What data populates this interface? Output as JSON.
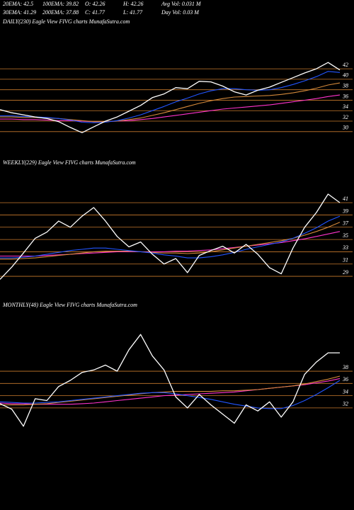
{
  "header": {
    "lines": [
      [
        "20EMA: 42.5",
        "100EMA: 39.82",
        "O: 42.26",
        "H: 42.26",
        "Avg Vol: 0.031 M"
      ],
      [
        "30EMA: 41.29",
        "200EMA: 37.88",
        "C: 41.77",
        "L: 41.77",
        "Day Vol: 0.03 M"
      ]
    ]
  },
  "chart_data": [
    {
      "type": "line",
      "title": "DAILY(230) Eagle  View  FIVG charts MunafaSutra.com",
      "ylim": [
        27.4,
        50
      ],
      "yticks": [
        30,
        32,
        34,
        36,
        38,
        40,
        42
      ],
      "level_color": "#c87a2c",
      "series": [
        {
          "color": "#ffffff",
          "values": [
            34.2,
            33.6,
            33.2,
            32.8,
            32.5,
            31.9,
            30.8,
            29.8,
            30.9,
            32.0,
            32.8,
            33.9,
            35.0,
            36.5,
            37.2,
            38.4,
            38.2,
            39.6,
            39.5,
            38.7,
            37.6,
            37.0,
            37.9,
            38.5,
            39.4,
            40.3,
            41.2,
            42.0,
            43.2,
            41.77
          ]
        },
        {
          "color": "#2255ff",
          "values": [
            33.0,
            33.0,
            32.9,
            32.8,
            32.7,
            32.5,
            32.2,
            31.8,
            31.7,
            31.8,
            32.1,
            32.6,
            33.2,
            34.0,
            34.8,
            35.7,
            36.4,
            37.2,
            37.8,
            38.2,
            38.2,
            38.0,
            37.9,
            38.0,
            38.4,
            39.0,
            39.7,
            40.5,
            41.5,
            41.3
          ]
        },
        {
          "color": "#d4893a",
          "values": [
            32.8,
            32.8,
            32.7,
            32.7,
            32.6,
            32.5,
            32.3,
            32.1,
            31.9,
            31.9,
            32.0,
            32.3,
            32.6,
            33.1,
            33.6,
            34.2,
            34.8,
            35.4,
            35.9,
            36.3,
            36.6,
            36.7,
            36.8,
            36.9,
            37.1,
            37.4,
            37.8,
            38.3,
            38.9,
            39.3
          ]
        },
        {
          "color": "#ff33cc",
          "values": [
            32.4,
            32.4,
            32.3,
            32.3,
            32.2,
            32.1,
            32.1,
            32.0,
            31.9,
            31.9,
            32.0,
            32.1,
            32.3,
            32.5,
            32.8,
            33.1,
            33.4,
            33.7,
            34.0,
            34.3,
            34.5,
            34.7,
            34.9,
            35.1,
            35.4,
            35.7,
            36.0,
            36.3,
            36.7,
            37.0
          ]
        }
      ]
    },
    {
      "type": "line",
      "title": "WEEKLY(229) Eagle  View  FIVG charts MunafaSutra.com",
      "ylim": [
        26.7,
        46.9
      ],
      "yticks": [
        29,
        31,
        33,
        35,
        37,
        39,
        41
      ],
      "level_color": "#c87a2c",
      "series": [
        {
          "color": "#ffffff",
          "values": [
            28.5,
            30.5,
            32.8,
            35.2,
            36.2,
            38.0,
            37.0,
            38.8,
            40.2,
            38.0,
            35.5,
            33.8,
            34.6,
            32.6,
            31.0,
            31.9,
            29.6,
            32.4,
            33.2,
            33.9,
            32.8,
            34.2,
            32.6,
            30.4,
            29.4,
            33.6,
            37.0,
            39.4,
            42.4,
            41.0
          ]
        },
        {
          "color": "#2255ff",
          "values": [
            32.0,
            32.0,
            32.1,
            32.3,
            32.6,
            32.9,
            33.2,
            33.4,
            33.6,
            33.6,
            33.4,
            33.2,
            33.0,
            32.8,
            32.5,
            32.3,
            32.0,
            32.0,
            32.2,
            32.5,
            32.9,
            33.4,
            33.8,
            34.2,
            34.6,
            35.2,
            36.0,
            36.9,
            38.0,
            38.8
          ]
        },
        {
          "color": "#d4893a",
          "values": [
            31.8,
            31.8,
            31.9,
            32.0,
            32.2,
            32.4,
            32.6,
            32.8,
            33.0,
            33.1,
            33.1,
            33.1,
            33.0,
            32.9,
            32.8,
            32.8,
            32.7,
            32.8,
            33.0,
            33.3,
            33.6,
            33.9,
            34.2,
            34.5,
            34.8,
            35.2,
            35.7,
            36.3,
            37.0,
            37.8
          ]
        },
        {
          "color": "#ff33cc",
          "values": [
            32.3,
            32.3,
            32.3,
            32.3,
            32.4,
            32.5,
            32.6,
            32.7,
            32.8,
            32.9,
            33.0,
            33.0,
            33.0,
            33.0,
            33.0,
            33.1,
            33.1,
            33.2,
            33.3,
            33.5,
            33.7,
            33.9,
            34.1,
            34.3,
            34.5,
            34.8,
            35.1,
            35.5,
            35.9,
            36.3
          ]
        }
      ]
    },
    {
      "type": "line",
      "title": "MONTHLY(48) Eagle  View  FIVG charts MunafaSutra.com",
      "ylim": [
        26.9,
        48.3
      ],
      "yticks": [
        32,
        34,
        36,
        38
      ],
      "level_color": "#c87a2c",
      "series": [
        {
          "color": "#ffffff",
          "values": [
            32.7,
            31.8,
            29.0,
            33.5,
            33.2,
            35.5,
            36.5,
            37.8,
            38.2,
            39.0,
            38.0,
            41.5,
            44.0,
            40.5,
            38.2,
            33.8,
            32.0,
            34.2,
            32.5,
            31.0,
            29.5,
            32.5,
            31.5,
            33.0,
            30.5,
            33.0,
            37.5,
            39.5,
            41.0,
            41.0
          ]
        },
        {
          "color": "#2255ff",
          "values": [
            33.0,
            32.9,
            32.8,
            32.8,
            32.9,
            33.0,
            33.2,
            33.4,
            33.6,
            33.8,
            34.0,
            34.2,
            34.4,
            34.5,
            34.5,
            34.3,
            34.0,
            33.7,
            33.4,
            33.0,
            32.6,
            32.3,
            32.0,
            31.9,
            31.9,
            32.4,
            33.2,
            34.2,
            35.3,
            36.5
          ]
        },
        {
          "color": "#d4893a",
          "values": [
            32.5,
            32.5,
            32.5,
            32.6,
            32.7,
            32.9,
            33.1,
            33.3,
            33.5,
            33.7,
            33.9,
            34.1,
            34.3,
            34.5,
            34.6,
            34.7,
            34.7,
            34.7,
            34.7,
            34.8,
            34.8,
            34.9,
            35.0,
            35.2,
            35.4,
            35.6,
            35.9,
            36.3,
            36.7,
            37.2
          ]
        },
        {
          "color": "#ff33cc",
          "values": [
            32.8,
            32.7,
            32.7,
            32.6,
            32.6,
            32.6,
            32.6,
            32.7,
            32.8,
            33.0,
            33.2,
            33.4,
            33.6,
            33.8,
            34.0,
            34.1,
            34.2,
            34.3,
            34.4,
            34.5,
            34.6,
            34.8,
            35.0,
            35.2,
            35.4,
            35.6,
            35.8,
            36.1,
            36.4,
            36.8
          ]
        }
      ]
    }
  ]
}
